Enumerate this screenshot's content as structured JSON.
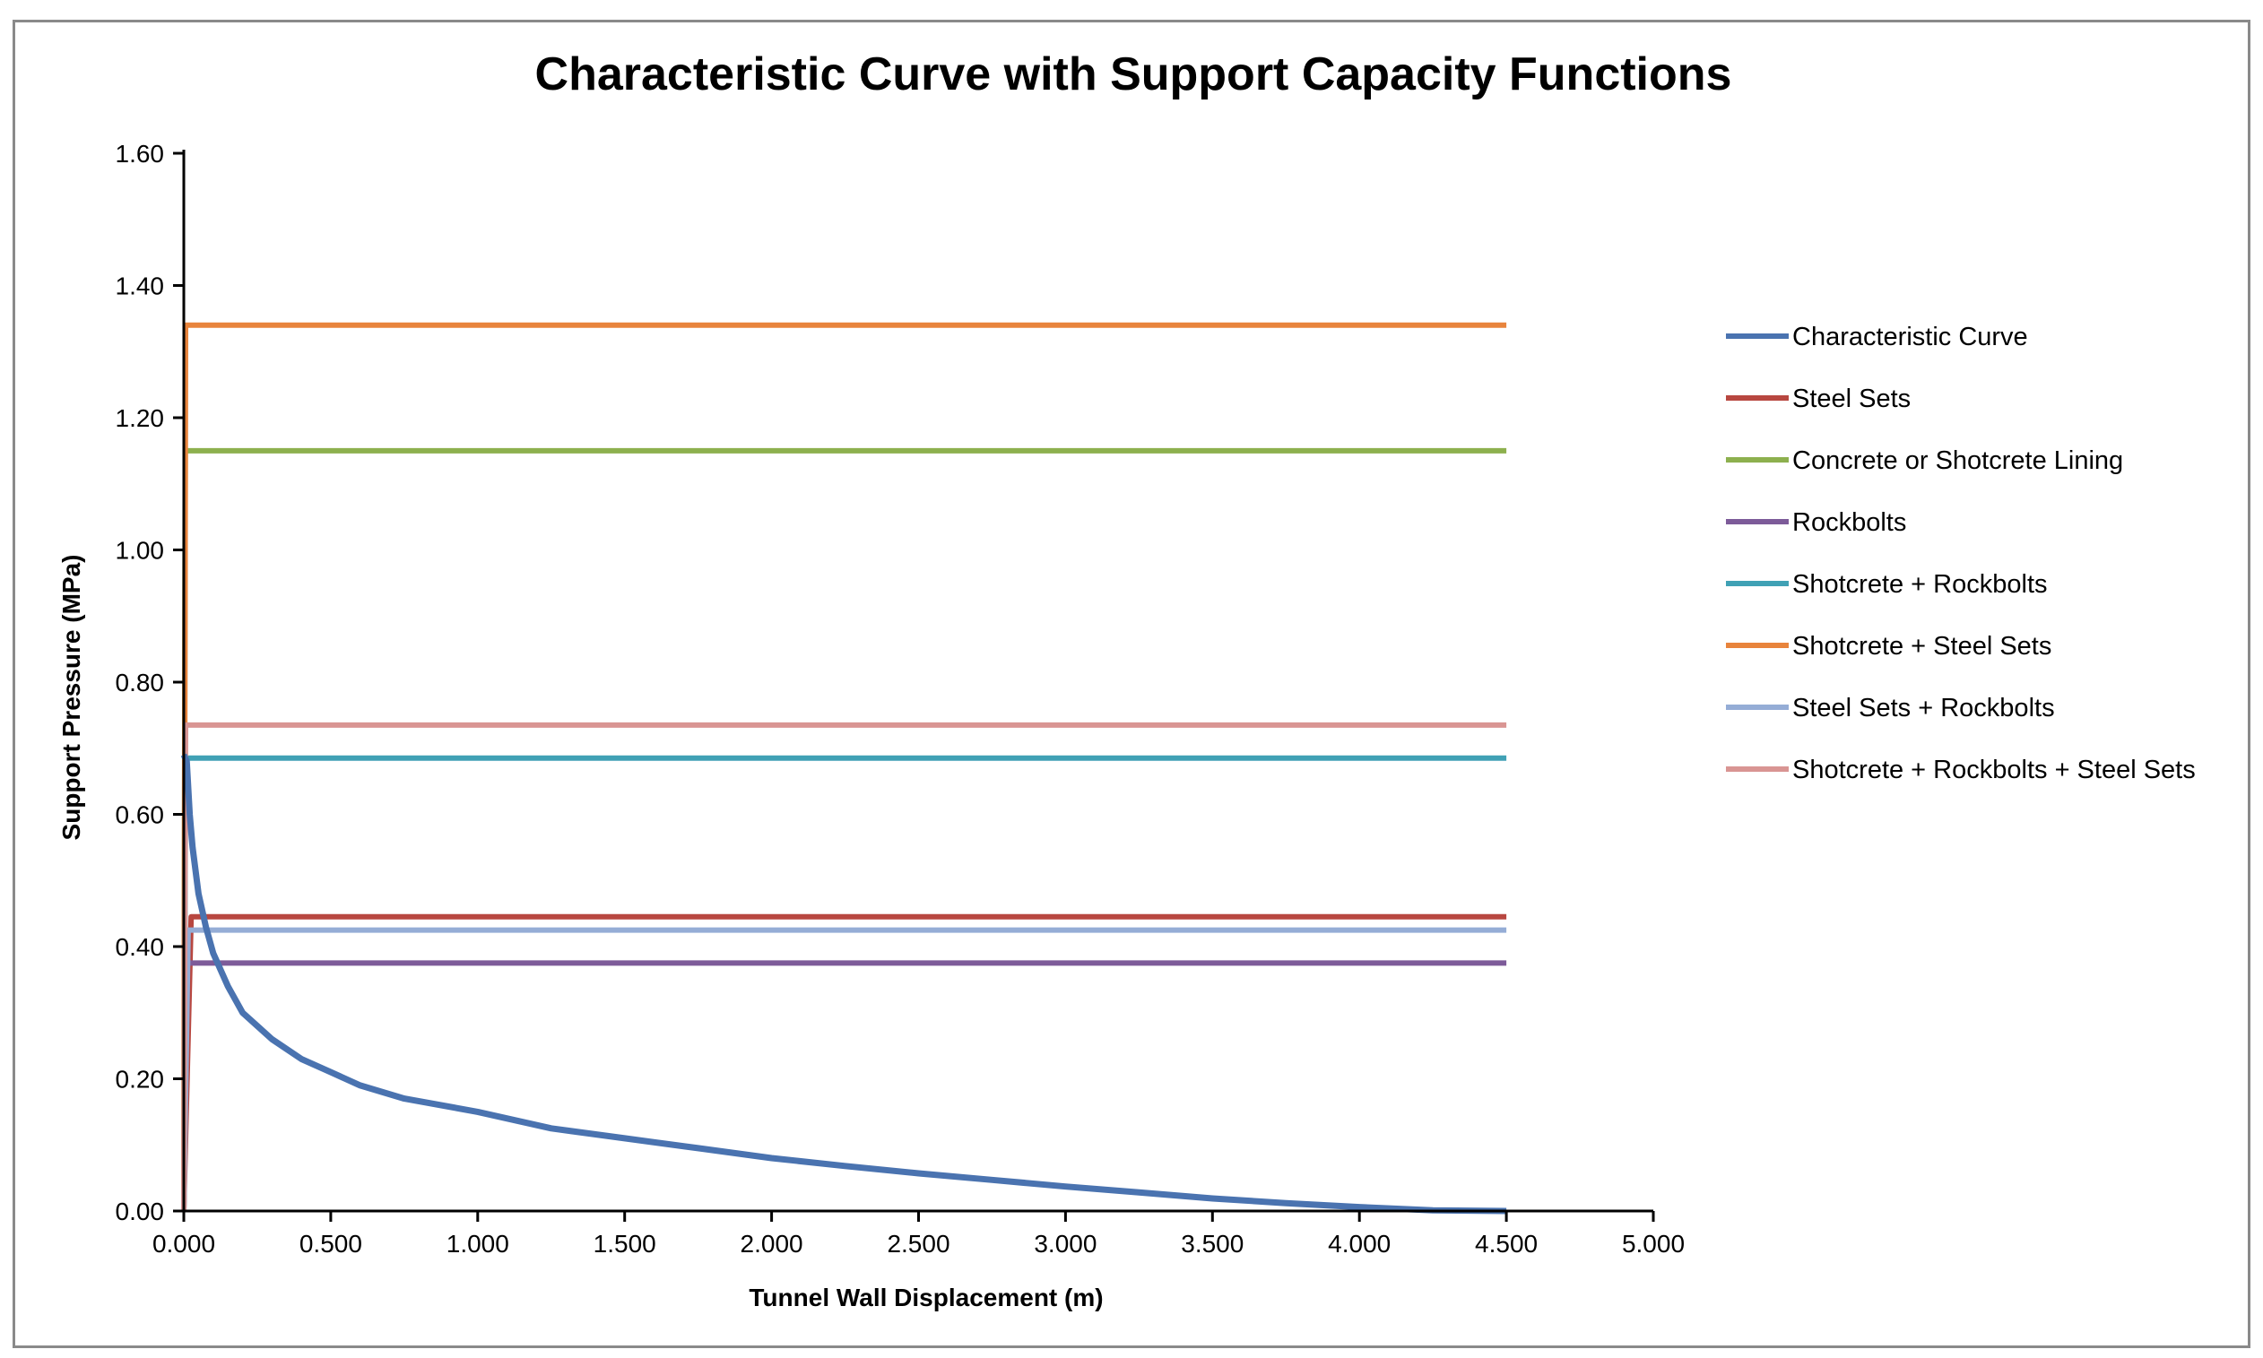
{
  "chart_data": {
    "type": "line",
    "title": "Characteristic Curve with Support Capacity Functions",
    "xlabel": "Tunnel Wall Displacement (m)",
    "ylabel": "Support Pressure (MPa)",
    "xlim": [
      0,
      5
    ],
    "ylim": [
      0,
      1.6
    ],
    "x_ticks": [
      "0.000",
      "0.500",
      "1.000",
      "1.500",
      "2.000",
      "2.500",
      "3.000",
      "3.500",
      "4.000",
      "4.500",
      "5.000"
    ],
    "y_ticks": [
      "0.00",
      "0.20",
      "0.40",
      "0.60",
      "0.80",
      "1.00",
      "1.20",
      "1.40",
      "1.60"
    ],
    "grid": false,
    "legend_position": "right",
    "series": [
      {
        "name": "Characteristic Curve",
        "color": "#4a73b0",
        "x": [
          0.0,
          0.01,
          0.02,
          0.03,
          0.05,
          0.075,
          0.1,
          0.15,
          0.2,
          0.3,
          0.4,
          0.5,
          0.6,
          0.75,
          1.0,
          1.25,
          1.5,
          1.75,
          2.0,
          2.25,
          2.5,
          2.75,
          3.0,
          3.25,
          3.5,
          3.75,
          4.0,
          4.25,
          4.5
        ],
        "y": [
          0.69,
          0.68,
          0.6,
          0.55,
          0.48,
          0.43,
          0.39,
          0.34,
          0.3,
          0.26,
          0.23,
          0.21,
          0.19,
          0.17,
          0.15,
          0.125,
          0.11,
          0.095,
          0.08,
          0.068,
          0.057,
          0.047,
          0.037,
          0.028,
          0.019,
          0.012,
          0.006,
          0.001,
          0.0
        ]
      },
      {
        "name": "Steel Sets",
        "color": "#b84740",
        "x": [
          0.0,
          0.025,
          4.5
        ],
        "y": [
          0.0,
          0.445,
          0.445
        ]
      },
      {
        "name": "Concrete or Shotcrete Lining",
        "color": "#8db04e",
        "x": [
          0.0,
          0.005,
          4.5
        ],
        "y": [
          0.0,
          1.15,
          1.15
        ]
      },
      {
        "name": "Rockbolts",
        "color": "#7d5b99",
        "x": [
          0.0,
          0.01,
          4.5
        ],
        "y": [
          0.0,
          0.375,
          0.375
        ]
      },
      {
        "name": "Shotcrete + Rockbolts",
        "color": "#40a1b5",
        "x": [
          0.0,
          0.006,
          4.5
        ],
        "y": [
          0.0,
          0.685,
          0.685
        ]
      },
      {
        "name": "Shotcrete + Steel Sets",
        "color": "#e8843c",
        "x": [
          0.0,
          0.006,
          4.5
        ],
        "y": [
          0.0,
          1.34,
          1.34
        ]
      },
      {
        "name": "Steel Sets + Rockbolts",
        "color": "#95add6",
        "x": [
          0.0,
          0.015,
          4.5
        ],
        "y": [
          0.0,
          0.425,
          0.425
        ]
      },
      {
        "name": "Shotcrete + Rockbolts + Steel Sets",
        "color": "#d99593",
        "x": [
          0.0,
          0.006,
          4.5
        ],
        "y": [
          0.0,
          0.735,
          0.735
        ]
      }
    ]
  }
}
